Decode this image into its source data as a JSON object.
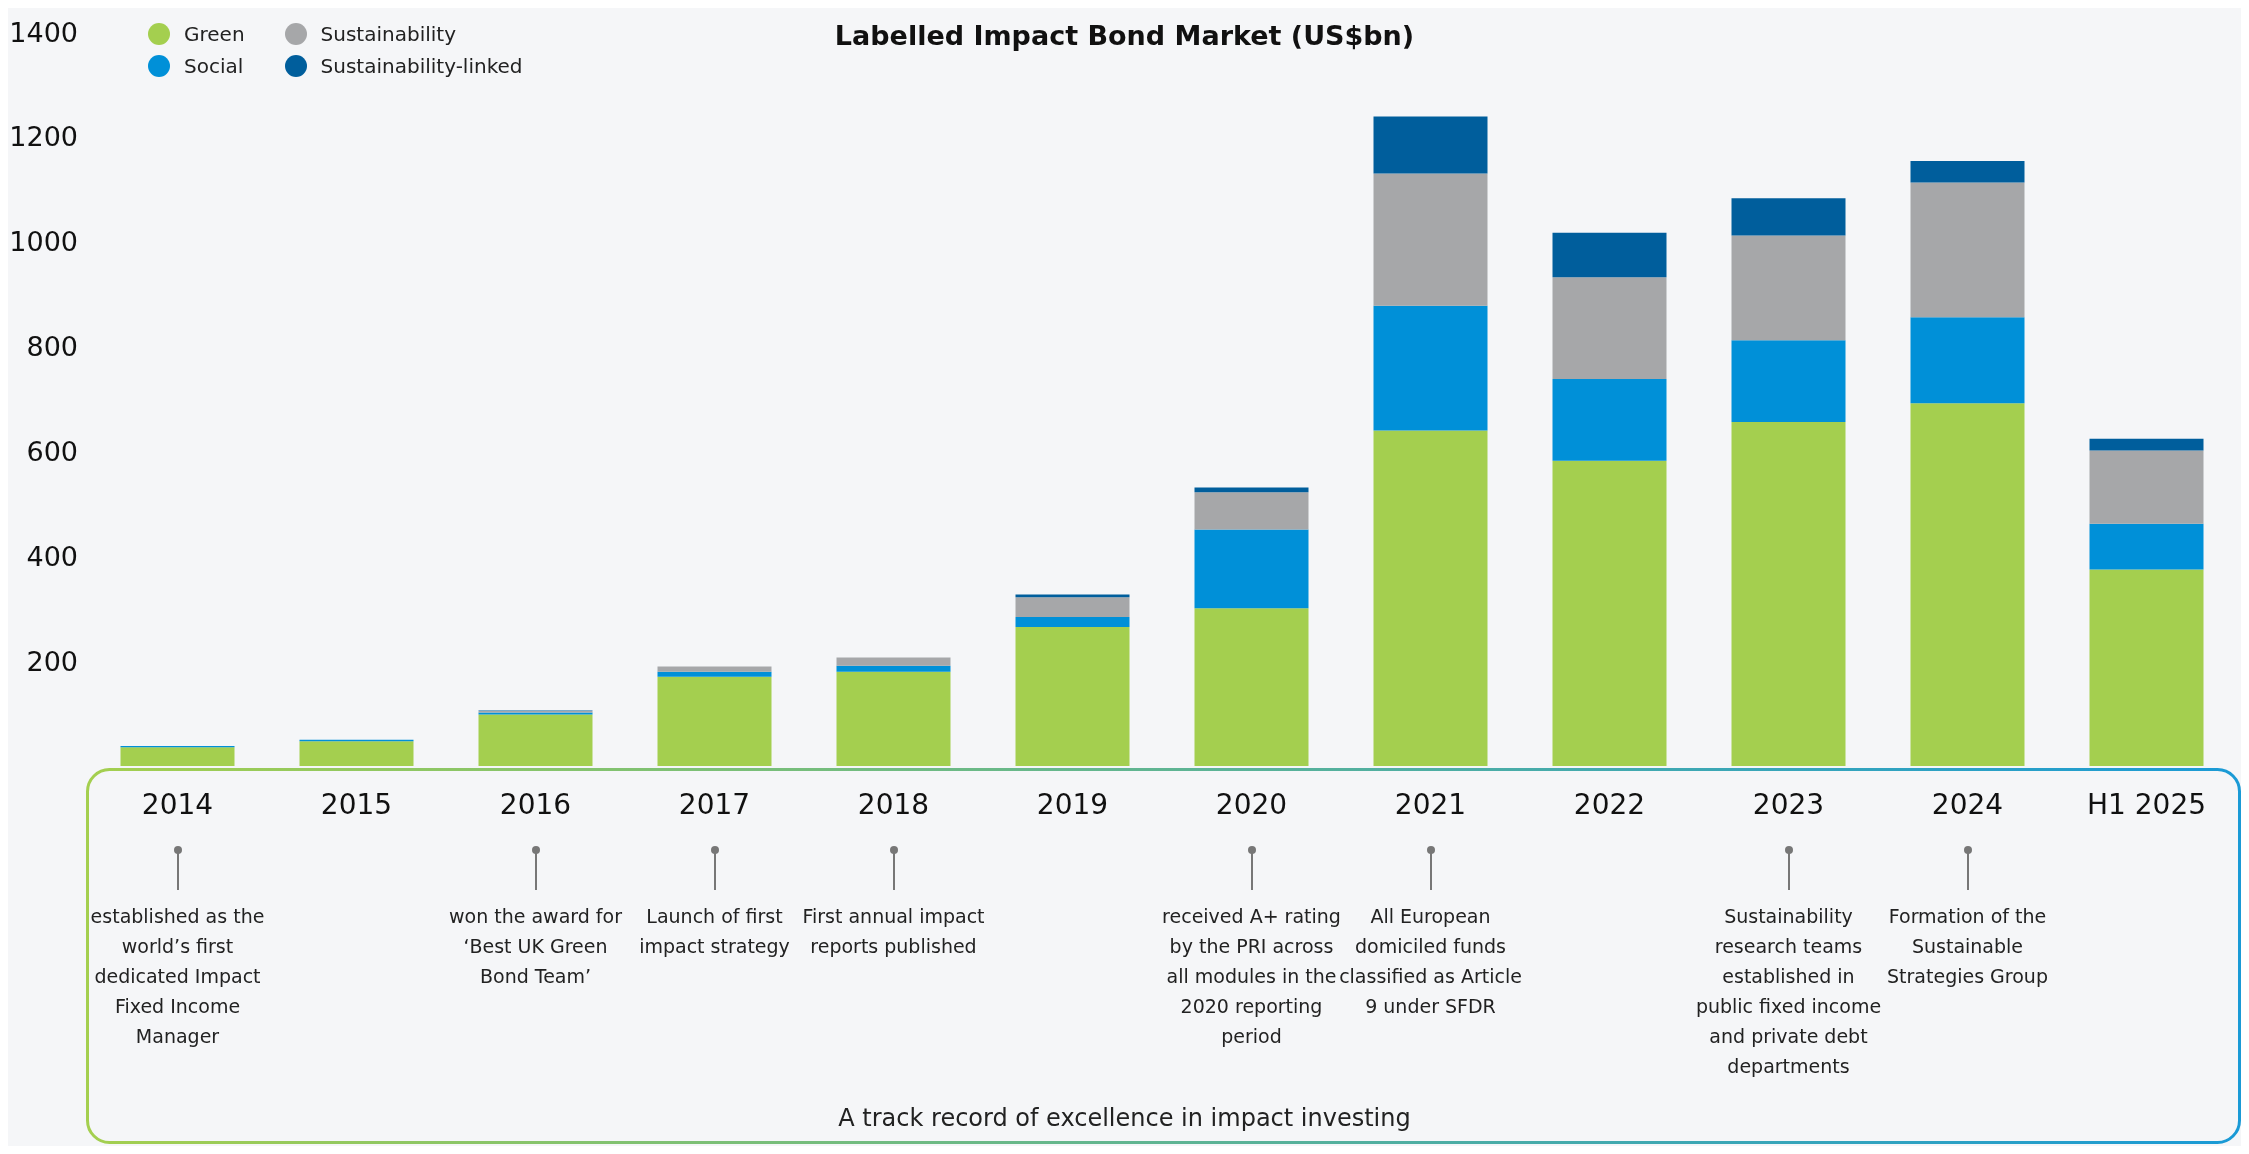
{
  "chart_data": {
    "type": "bar",
    "title": "Labelled Impact Bond Market (US$bn)",
    "stacked": true,
    "legend": "top left",
    "categories": [
      "2014",
      "2015",
      "2016",
      "2017",
      "2018",
      "2019",
      "2020",
      "2021",
      "2022",
      "2023",
      "2024",
      "H1 2025"
    ],
    "series": [
      {
        "name": "Green",
        "color": "#a4cf4f",
        "values": [
          36,
          47,
          98,
          170,
          180,
          265,
          301,
          640,
          582,
          656,
          692,
          375
        ]
      },
      {
        "name": "Social",
        "color": "#0090d8",
        "values": [
          2,
          3,
          4,
          10,
          11,
          19,
          150,
          238,
          156,
          156,
          164,
          87
        ]
      },
      {
        "name": "Sustainability",
        "color": "#a6a7a9",
        "values": [
          null,
          null,
          3,
          10,
          16,
          38,
          71,
          252,
          194,
          200,
          257,
          140
        ]
      },
      {
        "name": "Sustainability-linked",
        "color": "#005e9c",
        "values": [
          0,
          0,
          1,
          null,
          null,
          5,
          9,
          109,
          85,
          71,
          41,
          22
        ]
      }
    ],
    "ylim": [
      0,
      1400
    ],
    "yticks": [
      200,
      400,
      600,
      800,
      1000,
      1200,
      1400
    ],
    "annotations": [
      "established as the world’s first dedicated Impact Fixed Income Manager",
      "won the award for ‘Best UK Green Bond Team’",
      "Launch of first impact strategy",
      "First annual impact reports published",
      "received A+ rating by the PRI across all modules in the 2020 reporting period",
      "All European domiciled funds classified as Article 9 under SFDR",
      "Sustainability research teams established in public fixed income and private debt departments",
      "Formation of the Sustainable Strategies Group",
      "A track record of excellence in impact investing"
    ]
  }
}
